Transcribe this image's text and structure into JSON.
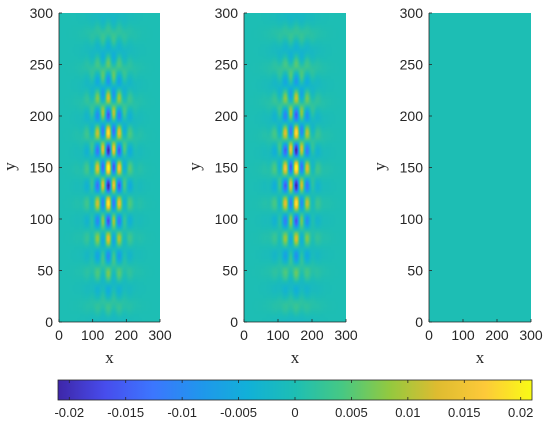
{
  "chart_data": {
    "type": "heatmap",
    "panels": [
      {
        "name": "panel-1",
        "xlabel": "x",
        "ylabel": "y",
        "xlim": [
          0,
          300
        ],
        "ylim": [
          0,
          300
        ],
        "xticks": [
          "0",
          "100",
          "200",
          "300"
        ],
        "yticks": [
          "0",
          "50",
          "100",
          "150",
          "200",
          "250",
          "300"
        ],
        "field": {
          "amplitude": 0.021,
          "center": [
            150,
            150
          ],
          "sigma": [
            32,
            60
          ],
          "kx": 0.19,
          "ky": 0.18,
          "phase": 0.7,
          "bands": 0.011,
          "band_ky": 0.19
        }
      },
      {
        "name": "panel-2",
        "xlabel": "x",
        "ylabel": "y",
        "xlim": [
          0,
          300
        ],
        "ylim": [
          0,
          300
        ],
        "xticks": [
          "0",
          "100",
          "200",
          "300"
        ],
        "yticks": [
          "0",
          "50",
          "100",
          "150",
          "200",
          "250",
          "300"
        ],
        "field": {
          "amplitude": 0.021,
          "center": [
            150,
            150
          ],
          "sigma": [
            30,
            55
          ],
          "kx": 0.19,
          "ky": 0.18,
          "phase": -0.7,
          "bands": 0.011,
          "band_ky": 0.19
        }
      },
      {
        "name": "panel-3",
        "xlabel": "x",
        "ylabel": "y",
        "xlim": [
          0,
          300
        ],
        "ylim": [
          0,
          300
        ],
        "xticks": [
          "0",
          "100",
          "200",
          "300"
        ],
        "yticks": [
          "0",
          "50",
          "100",
          "150",
          "200",
          "250",
          "300"
        ],
        "field": {
          "amplitude": 0,
          "center": [
            150,
            150
          ],
          "sigma": [
            30,
            55
          ],
          "kx": 0,
          "ky": 0,
          "phase": 0,
          "bands": 0,
          "band_ky": 0
        }
      }
    ],
    "colorbar": {
      "colormap": "parula",
      "range": [
        -0.021,
        0.021
      ],
      "ticks": [
        "-0.02",
        "-0.015",
        "-0.01",
        "-0.005",
        "0",
        "0.005",
        "0.01",
        "0.015",
        "0.02"
      ],
      "tick_values": [
        -0.02,
        -0.015,
        -0.01,
        -0.005,
        0,
        0.005,
        0.01,
        0.015,
        0.02
      ],
      "orientation": "horizontal",
      "placement": "bottom"
    },
    "grid": false
  }
}
